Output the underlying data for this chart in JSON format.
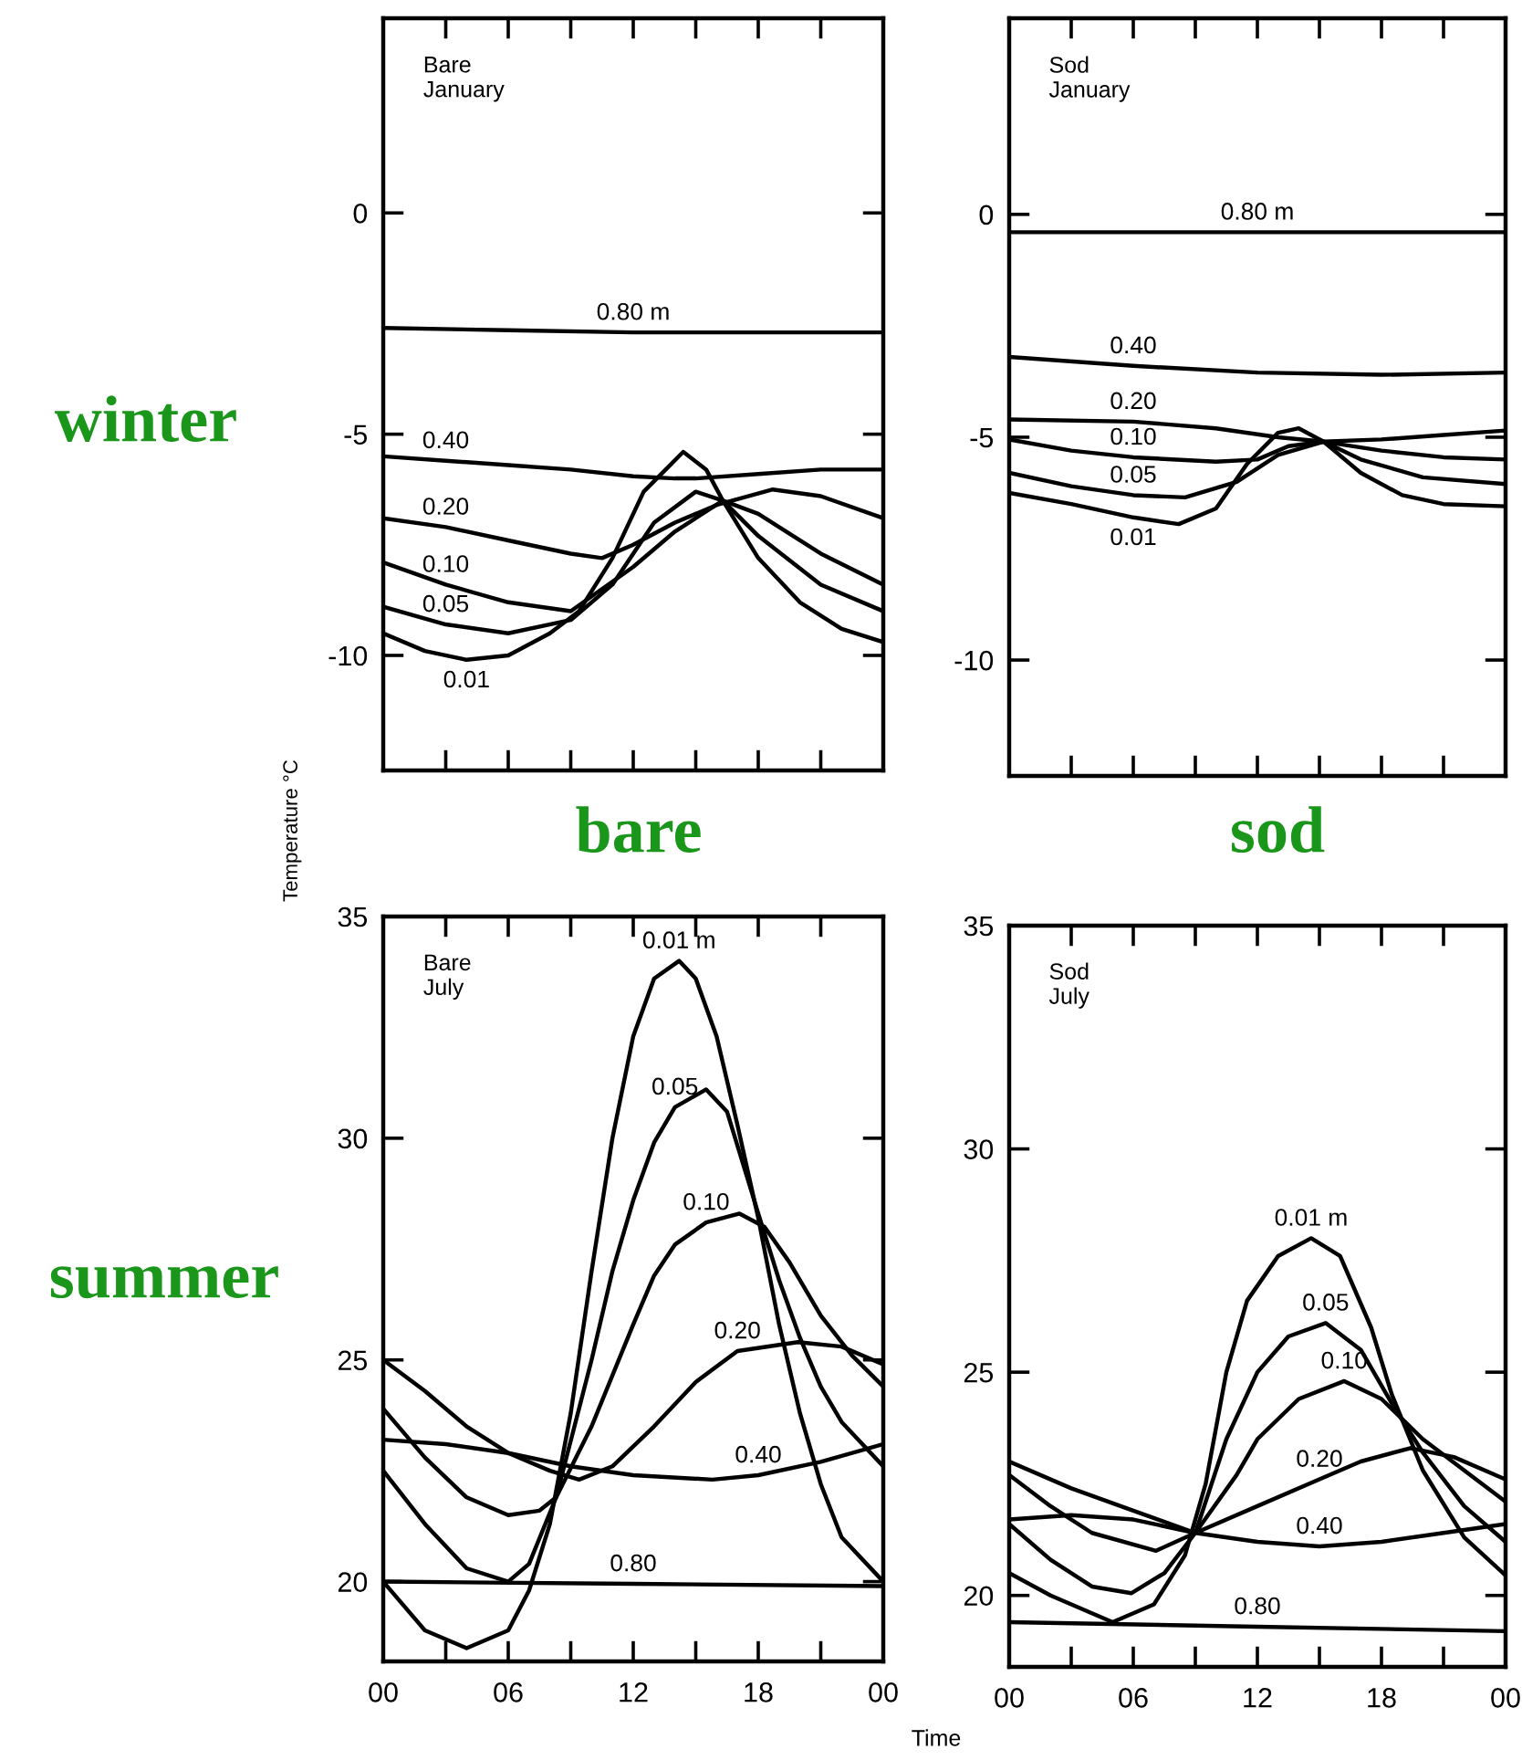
{
  "chart_data": [
    {
      "type": "line",
      "title": "Bare\nJanuary",
      "xlim": [
        0,
        24
      ],
      "ylim": [
        -12.6,
        4.4
      ],
      "yticks": [
        0,
        -5,
        -10
      ],
      "tick_labels": "y",
      "grid": false,
      "line_style": "solid",
      "marker": "none",
      "xticks": [
        {
          "value": 0,
          "label": null
        },
        {
          "value": 3,
          "label": null
        },
        {
          "value": 6,
          "label": null
        },
        {
          "value": 9,
          "label": null
        },
        {
          "value": 12,
          "label": null
        },
        {
          "value": 15,
          "label": null
        },
        {
          "value": 18,
          "label": null
        },
        {
          "value": 21,
          "label": null
        },
        {
          "value": 24,
          "label": null
        }
      ],
      "series": [
        {
          "color": "#000000",
          "x": [
            0,
            6,
            12,
            18,
            24
          ],
          "values": [
            -2.6,
            -2.65,
            -2.7,
            -2.7,
            -2.7
          ]
        },
        {
          "color": "#000000",
          "x": [
            0,
            3,
            6,
            9,
            12,
            14,
            15,
            18,
            21,
            24
          ],
          "values": [
            -5.5,
            -5.6,
            -5.7,
            -5.8,
            -5.95,
            -6.0,
            -6.0,
            -5.9,
            -5.8,
            -5.8
          ]
        },
        {
          "color": "#000000",
          "x": [
            0,
            3,
            6,
            9,
            10.5,
            12,
            14,
            16,
            18.7,
            21,
            24
          ],
          "values": [
            -6.9,
            -7.1,
            -7.4,
            -7.7,
            -7.8,
            -7.5,
            -7.0,
            -6.6,
            -6.25,
            -6.4,
            -6.9
          ]
        },
        {
          "color": "#000000",
          "x": [
            0,
            3,
            6,
            9,
            12,
            14,
            16.3,
            18,
            21,
            24
          ],
          "values": [
            -7.9,
            -8.4,
            -8.8,
            -9.0,
            -8.0,
            -7.2,
            -6.5,
            -6.8,
            -7.7,
            -8.4
          ]
        },
        {
          "color": "#000000",
          "x": [
            0,
            3,
            6,
            9,
            11,
            13,
            15,
            16.3,
            18,
            21,
            24
          ],
          "values": [
            -8.9,
            -9.3,
            -9.5,
            -9.2,
            -8.4,
            -7.0,
            -6.3,
            -6.5,
            -7.3,
            -8.4,
            -9.0
          ]
        },
        {
          "color": "#000000",
          "x": [
            0,
            2,
            4,
            6,
            8,
            9.4,
            11,
            12.5,
            14.4,
            15.5,
            16.3,
            18,
            20,
            22,
            24
          ],
          "values": [
            -9.5,
            -9.9,
            -10.1,
            -10.0,
            -9.5,
            -9.0,
            -7.8,
            -6.3,
            -5.4,
            -5.8,
            -6.5,
            -7.8,
            -8.8,
            -9.4,
            -9.7
          ]
        }
      ],
      "annotations": [
        "winter",
        {
          "text": "0.80 m",
          "x": 12,
          "y": -2.7
        },
        {
          "text": "0.40",
          "x": 3,
          "y": -5.6
        },
        {
          "text": "0.20",
          "x": 3,
          "y": -7.1
        },
        {
          "text": "0.10",
          "x": 3,
          "y": -8.4
        },
        {
          "text": "0.05",
          "x": 3,
          "y": -9.3
        },
        {
          "text": "0.01",
          "x": 4,
          "y": -10.1
        }
      ]
    },
    {
      "type": "line",
      "title": "Sod\nJanuary",
      "xlim": [
        0,
        24
      ],
      "ylim": [
        -12.6,
        4.4
      ],
      "yticks": [
        0,
        -5,
        -10
      ],
      "tick_labels": "y",
      "grid": false,
      "line_style": "solid",
      "marker": "none",
      "xticks": [
        {
          "value": 0,
          "label": null
        },
        {
          "value": 3,
          "label": null
        },
        {
          "value": 6,
          "label": null
        },
        {
          "value": 9,
          "label": null
        },
        {
          "value": 12,
          "label": null
        },
        {
          "value": 15,
          "label": null
        },
        {
          "value": 18,
          "label": null
        },
        {
          "value": 21,
          "label": null
        },
        {
          "value": 24,
          "label": null
        }
      ],
      "series": [
        {
          "color": "#000000",
          "x": [
            0,
            12,
            24
          ],
          "values": [
            -0.4,
            -0.4,
            -0.4
          ]
        },
        {
          "color": "#000000",
          "x": [
            0,
            6,
            12,
            18,
            24
          ],
          "values": [
            -3.2,
            -3.4,
            -3.55,
            -3.6,
            -3.55
          ]
        },
        {
          "color": "#000000",
          "x": [
            0,
            6,
            10,
            13,
            15.2,
            18,
            21,
            24
          ],
          "values": [
            -4.6,
            -4.65,
            -4.8,
            -5.0,
            -5.1,
            -5.05,
            -4.95,
            -4.85
          ]
        },
        {
          "color": "#000000",
          "x": [
            0,
            3,
            6,
            10,
            12,
            13.5,
            15.2,
            18,
            21,
            24
          ],
          "values": [
            -5.05,
            -5.3,
            -5.45,
            -5.55,
            -5.5,
            -5.2,
            -5.1,
            -5.3,
            -5.45,
            -5.5
          ]
        },
        {
          "color": "#000000",
          "x": [
            0,
            3,
            6,
            8.5,
            11,
            13,
            15.2,
            17,
            20,
            24
          ],
          "values": [
            -5.8,
            -6.1,
            -6.3,
            -6.35,
            -6.0,
            -5.4,
            -5.1,
            -5.5,
            -5.9,
            -6.05
          ]
        },
        {
          "color": "#000000",
          "x": [
            0,
            3,
            6,
            8.2,
            10,
            11.5,
            13,
            14,
            15.2,
            17,
            19,
            21,
            24
          ],
          "values": [
            -6.25,
            -6.5,
            -6.8,
            -6.95,
            -6.6,
            -5.6,
            -4.9,
            -4.8,
            -5.1,
            -5.8,
            -6.3,
            -6.5,
            -6.55
          ]
        }
      ],
      "annotations": [
        {
          "text": "0.80 m",
          "x": 12,
          "y": -0.4
        },
        {
          "text": "0.40",
          "x": 6,
          "y": -3.4
        },
        {
          "text": "0.20",
          "x": 6,
          "y": -4.65
        },
        {
          "text": "0.10",
          "x": 6,
          "y": -5.45
        },
        {
          "text": "0.05",
          "x": 6,
          "y": -6.3
        },
        {
          "text": "0.01",
          "x": 6,
          "y": -6.8
        }
      ]
    },
    {
      "type": "line",
      "title": "Bare\nJuly",
      "ylabel": "Temperature °C",
      "xlim": [
        0,
        24
      ],
      "ylim": [
        18.2,
        35
      ],
      "yticks": [
        20,
        25,
        30,
        35
      ],
      "grid": false,
      "line_style": "solid",
      "marker": "none",
      "xticks": [
        {
          "value": 0,
          "label": "00"
        },
        {
          "value": 3,
          "label": null
        },
        {
          "value": 6,
          "label": "06"
        },
        {
          "value": 9,
          "label": null
        },
        {
          "value": 12,
          "label": "12"
        },
        {
          "value": 15,
          "label": null
        },
        {
          "value": 18,
          "label": "18"
        },
        {
          "value": 21,
          "label": null
        },
        {
          "value": 24,
          "label": "00"
        }
      ],
      "series": [
        {
          "color": "#000000",
          "x": [
            0,
            12,
            24
          ],
          "values": [
            20.0,
            19.95,
            19.9
          ]
        },
        {
          "color": "#000000",
          "x": [
            0,
            3,
            6,
            9,
            12,
            15.8,
            18,
            21,
            24
          ],
          "values": [
            23.2,
            23.1,
            22.9,
            22.6,
            22.4,
            22.3,
            22.4,
            22.7,
            23.1
          ]
        },
        {
          "color": "#000000",
          "x": [
            0,
            2,
            4,
            6,
            8,
            9.4,
            11,
            13,
            15,
            17,
            19.9,
            22,
            24
          ],
          "values": [
            25.0,
            24.3,
            23.5,
            22.9,
            22.5,
            22.3,
            22.6,
            23.5,
            24.5,
            25.2,
            25.4,
            25.3,
            24.9
          ]
        },
        {
          "color": "#000000",
          "x": [
            0,
            2,
            4,
            6,
            7.5,
            8.3,
            10,
            12,
            13,
            14,
            15.5,
            17.1,
            18.3,
            19.5,
            21,
            22.5,
            24
          ],
          "values": [
            23.9,
            22.8,
            21.9,
            21.5,
            21.6,
            21.9,
            23.5,
            25.8,
            26.9,
            27.6,
            28.1,
            28.3,
            28.0,
            27.2,
            26.0,
            25.1,
            24.4
          ]
        },
        {
          "color": "#000000",
          "x": [
            0,
            2,
            4,
            6,
            7,
            8.3,
            10,
            11,
            12,
            13,
            14,
            15.5,
            16.5,
            18,
            19,
            20,
            21,
            22,
            24
          ],
          "values": [
            22.5,
            21.3,
            20.3,
            20.0,
            20.4,
            21.9,
            25.0,
            27.0,
            28.6,
            29.9,
            30.7,
            31.1,
            30.6,
            28.3,
            26.8,
            25.5,
            24.4,
            23.6,
            22.6
          ]
        },
        {
          "color": "#000000",
          "x": [
            0,
            2,
            4,
            6,
            7,
            8,
            9,
            10,
            11,
            12,
            13,
            14.2,
            15,
            16,
            17,
            18,
            19,
            20,
            21,
            22,
            24
          ],
          "values": [
            20.0,
            18.9,
            18.5,
            18.9,
            19.8,
            21.3,
            23.8,
            27.0,
            30.0,
            32.3,
            33.6,
            34.0,
            33.6,
            32.3,
            30.3,
            28.2,
            25.8,
            23.8,
            22.2,
            21.0,
            20.0
          ]
        }
      ],
      "annotations": [
        "summer",
        "bare",
        {
          "text": "0.80",
          "x": 12,
          "y": 19.95
        },
        {
          "text": "0.40",
          "x": 18,
          "y": 22.4
        },
        {
          "text": "0.20",
          "x": 17,
          "y": 25.2
        },
        {
          "text": "0.10",
          "x": 15.5,
          "y": 28.1
        },
        {
          "text": "0.05",
          "x": 14,
          "y": 30.7
        },
        {
          "text": "0.01 m",
          "x": 14.2,
          "y": 34.0
        }
      ]
    },
    {
      "type": "line",
      "title": "Sod\nJuly",
      "xlabel": "Time",
      "xlim": [
        0,
        24
      ],
      "ylim": [
        18.4,
        35
      ],
      "yticks": [
        20,
        25,
        30,
        35
      ],
      "grid": false,
      "line_style": "solid",
      "marker": "none",
      "xticks": [
        {
          "value": 0,
          "label": "00"
        },
        {
          "value": 3,
          "label": null
        },
        {
          "value": 6,
          "label": "06"
        },
        {
          "value": 9,
          "label": null
        },
        {
          "value": 12,
          "label": "12"
        },
        {
          "value": 15,
          "label": null
        },
        {
          "value": 18,
          "label": "18"
        },
        {
          "value": 21,
          "label": null
        },
        {
          "value": 24,
          "label": "00"
        }
      ],
      "series": [
        {
          "color": "#000000",
          "x": [
            0,
            12,
            24
          ],
          "values": [
            19.4,
            19.3,
            19.2
          ]
        },
        {
          "color": "#000000",
          "x": [
            0,
            3,
            6,
            9,
            12,
            15,
            18,
            21,
            24
          ],
          "values": [
            21.7,
            21.8,
            21.7,
            21.4,
            21.2,
            21.1,
            21.2,
            21.4,
            21.6
          ]
        },
        {
          "color": "#000000",
          "x": [
            0,
            3,
            6,
            9,
            12,
            15,
            17,
            19.4,
            21.5,
            24
          ],
          "values": [
            23.0,
            22.4,
            21.9,
            21.4,
            22.0,
            22.6,
            23.0,
            23.3,
            23.1,
            22.6
          ]
        },
        {
          "color": "#000000",
          "x": [
            0,
            2,
            4,
            7.1,
            9,
            11,
            12,
            14,
            16.2,
            18,
            20,
            22,
            24
          ],
          "values": [
            22.7,
            22.0,
            21.4,
            21.0,
            21.4,
            22.7,
            23.5,
            24.4,
            24.8,
            24.4,
            23.5,
            22.8,
            22.1
          ]
        },
        {
          "color": "#000000",
          "x": [
            0,
            2,
            4,
            5.9,
            7.5,
            9,
            10.5,
            12,
            13.5,
            15.3,
            17,
            18.5,
            20,
            22,
            24
          ],
          "values": [
            21.6,
            20.8,
            20.2,
            20.05,
            20.5,
            21.4,
            23.5,
            25.0,
            25.8,
            26.1,
            25.5,
            24.3,
            23.2,
            22.0,
            21.2
          ]
        },
        {
          "color": "#000000",
          "x": [
            0,
            2,
            5,
            7,
            8.5,
            9.5,
            10.5,
            11.5,
            13,
            14.6,
            16,
            17.5,
            18.5,
            20,
            22,
            24
          ],
          "values": [
            20.5,
            20.0,
            19.4,
            19.8,
            20.9,
            22.5,
            25.0,
            26.6,
            27.6,
            28.0,
            27.6,
            26.0,
            24.5,
            22.8,
            21.3,
            20.45
          ]
        }
      ],
      "annotations": [
        "sod",
        {
          "text": "0.80",
          "x": 12,
          "y": 19.3
        },
        {
          "text": "0.40",
          "x": 15,
          "y": 21.1
        },
        {
          "text": "0.20",
          "x": 15,
          "y": 22.6
        },
        {
          "text": "0.10",
          "x": 16.2,
          "y": 24.8
        },
        {
          "text": "0.05",
          "x": 15.3,
          "y": 26.1
        },
        {
          "text": "0.01 m",
          "x": 14.6,
          "y": 28.0
        }
      ]
    }
  ]
}
